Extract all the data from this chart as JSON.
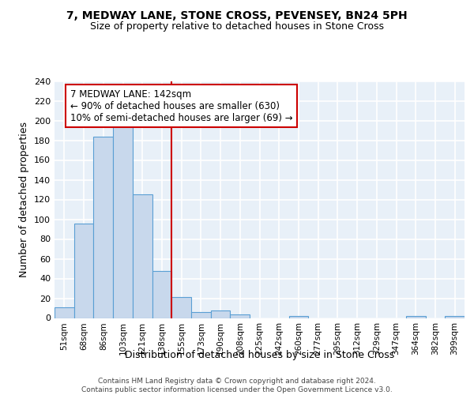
{
  "title": "7, MEDWAY LANE, STONE CROSS, PEVENSEY, BN24 5PH",
  "subtitle": "Size of property relative to detached houses in Stone Cross",
  "xlabel": "Distribution of detached houses by size in Stone Cross",
  "ylabel": "Number of detached properties",
  "bar_labels": [
    "51sqm",
    "68sqm",
    "86sqm",
    "103sqm",
    "121sqm",
    "138sqm",
    "155sqm",
    "173sqm",
    "190sqm",
    "208sqm",
    "225sqm",
    "242sqm",
    "260sqm",
    "277sqm",
    "295sqm",
    "312sqm",
    "329sqm",
    "347sqm",
    "364sqm",
    "382sqm",
    "399sqm"
  ],
  "bar_values": [
    11,
    96,
    184,
    200,
    125,
    48,
    21,
    6,
    8,
    4,
    0,
    0,
    2,
    0,
    0,
    0,
    0,
    0,
    2,
    0,
    2
  ],
  "bar_color": "#c8d8ec",
  "bar_edgecolor": "#5a9fd4",
  "vline_x": 5.5,
  "vline_color": "#cc0000",
  "annotation_text": "7 MEDWAY LANE: 142sqm\n← 90% of detached houses are smaller (630)\n10% of semi-detached houses are larger (69) →",
  "annotation_box_color": "white",
  "annotation_box_edgecolor": "#cc0000",
  "ylim": [
    0,
    240
  ],
  "yticks": [
    0,
    20,
    40,
    60,
    80,
    100,
    120,
    140,
    160,
    180,
    200,
    220,
    240
  ],
  "background_color": "#e8f0f8",
  "grid_color": "white",
  "footer_text": "Contains HM Land Registry data © Crown copyright and database right 2024.\nContains public sector information licensed under the Open Government Licence v3.0.",
  "title_fontsize": 10,
  "subtitle_fontsize": 9,
  "ylabel_fontsize": 9,
  "xlabel_fontsize": 9
}
